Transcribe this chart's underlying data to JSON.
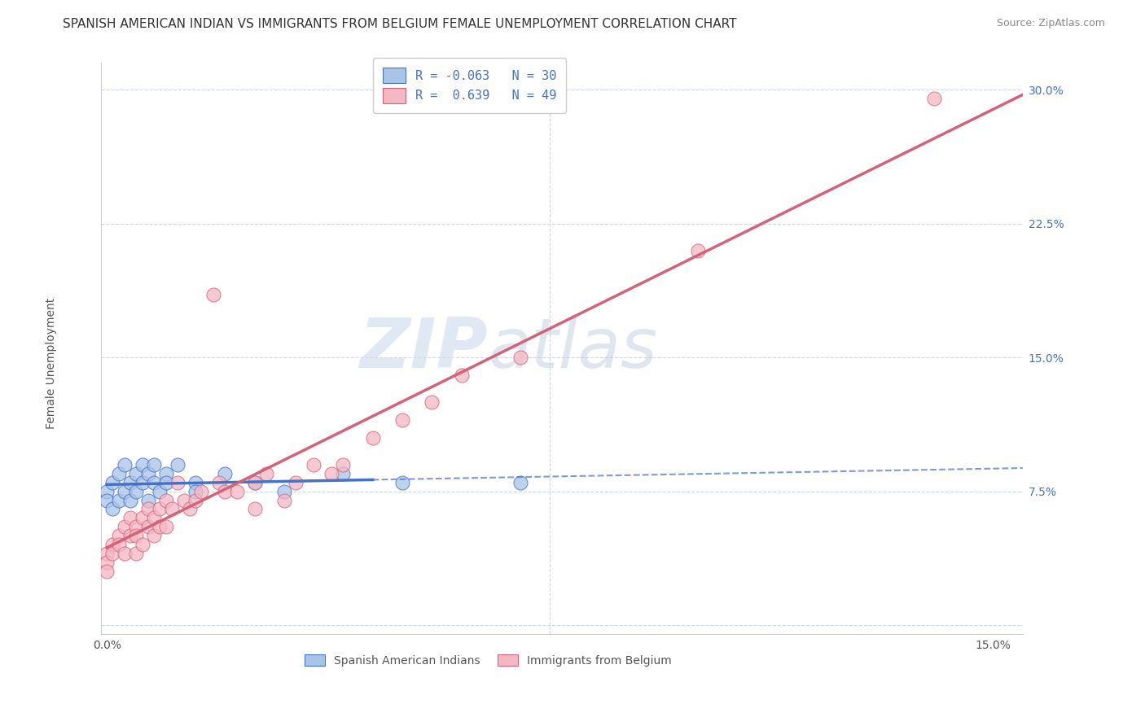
{
  "title": "SPANISH AMERICAN INDIAN VS IMMIGRANTS FROM BELGIUM FEMALE UNEMPLOYMENT CORRELATION CHART",
  "source": "Source: ZipAtlas.com",
  "ylabel": "Female Unemployment",
  "y_ticks": [
    0.0,
    0.075,
    0.15,
    0.225,
    0.3
  ],
  "y_tick_labels": [
    "",
    "7.5%",
    "15.0%",
    "22.5%",
    "30.0%"
  ],
  "x_lim": [
    -0.001,
    0.155
  ],
  "y_lim": [
    -0.005,
    0.315
  ],
  "legend_entries": [
    {
      "label": "R = -0.063   N = 30",
      "color": "#aac4e8",
      "R": -0.063,
      "N": 30
    },
    {
      "label": "R =  0.639   N = 49",
      "color": "#f4b8c4",
      "R": 0.639,
      "N": 49
    }
  ],
  "watermark_part1": "ZIP",
  "watermark_part2": "atlas",
  "blue_scatter_x": [
    0.0,
    0.0,
    0.001,
    0.001,
    0.002,
    0.002,
    0.003,
    0.003,
    0.004,
    0.004,
    0.005,
    0.005,
    0.006,
    0.006,
    0.007,
    0.007,
    0.008,
    0.008,
    0.009,
    0.01,
    0.01,
    0.012,
    0.015,
    0.015,
    0.02,
    0.025,
    0.03,
    0.04,
    0.05,
    0.07
  ],
  "blue_scatter_y": [
    0.075,
    0.07,
    0.08,
    0.065,
    0.085,
    0.07,
    0.09,
    0.075,
    0.08,
    0.07,
    0.085,
    0.075,
    0.09,
    0.08,
    0.085,
    0.07,
    0.09,
    0.08,
    0.075,
    0.085,
    0.08,
    0.09,
    0.08,
    0.075,
    0.085,
    0.08,
    0.075,
    0.085,
    0.08,
    0.08
  ],
  "pink_scatter_x": [
    0.0,
    0.0,
    0.0,
    0.001,
    0.001,
    0.002,
    0.002,
    0.003,
    0.003,
    0.004,
    0.004,
    0.005,
    0.005,
    0.005,
    0.006,
    0.006,
    0.007,
    0.007,
    0.008,
    0.008,
    0.009,
    0.009,
    0.01,
    0.01,
    0.011,
    0.012,
    0.013,
    0.014,
    0.015,
    0.016,
    0.018,
    0.019,
    0.02,
    0.022,
    0.025,
    0.025,
    0.027,
    0.03,
    0.032,
    0.035,
    0.038,
    0.04,
    0.045,
    0.05,
    0.055,
    0.06,
    0.07,
    0.1,
    0.14
  ],
  "pink_scatter_y": [
    0.04,
    0.035,
    0.03,
    0.045,
    0.04,
    0.05,
    0.045,
    0.055,
    0.04,
    0.06,
    0.05,
    0.055,
    0.05,
    0.04,
    0.06,
    0.045,
    0.065,
    0.055,
    0.06,
    0.05,
    0.065,
    0.055,
    0.07,
    0.055,
    0.065,
    0.08,
    0.07,
    0.065,
    0.07,
    0.075,
    0.185,
    0.08,
    0.075,
    0.075,
    0.08,
    0.065,
    0.085,
    0.07,
    0.08,
    0.09,
    0.085,
    0.09,
    0.105,
    0.115,
    0.125,
    0.14,
    0.15,
    0.21,
    0.295
  ],
  "blue_line_color": "#4472c4",
  "pink_line_color": "#d4637a",
  "grid_color": "#c8d8e8",
  "background_color": "#ffffff",
  "title_fontsize": 11,
  "source_fontsize": 9,
  "axis_label_fontsize": 10,
  "tick_fontsize": 10,
  "blue_trend_solid_end": 0.045,
  "pink_trend_intercept": -0.01,
  "pink_trend_slope": 2.05
}
